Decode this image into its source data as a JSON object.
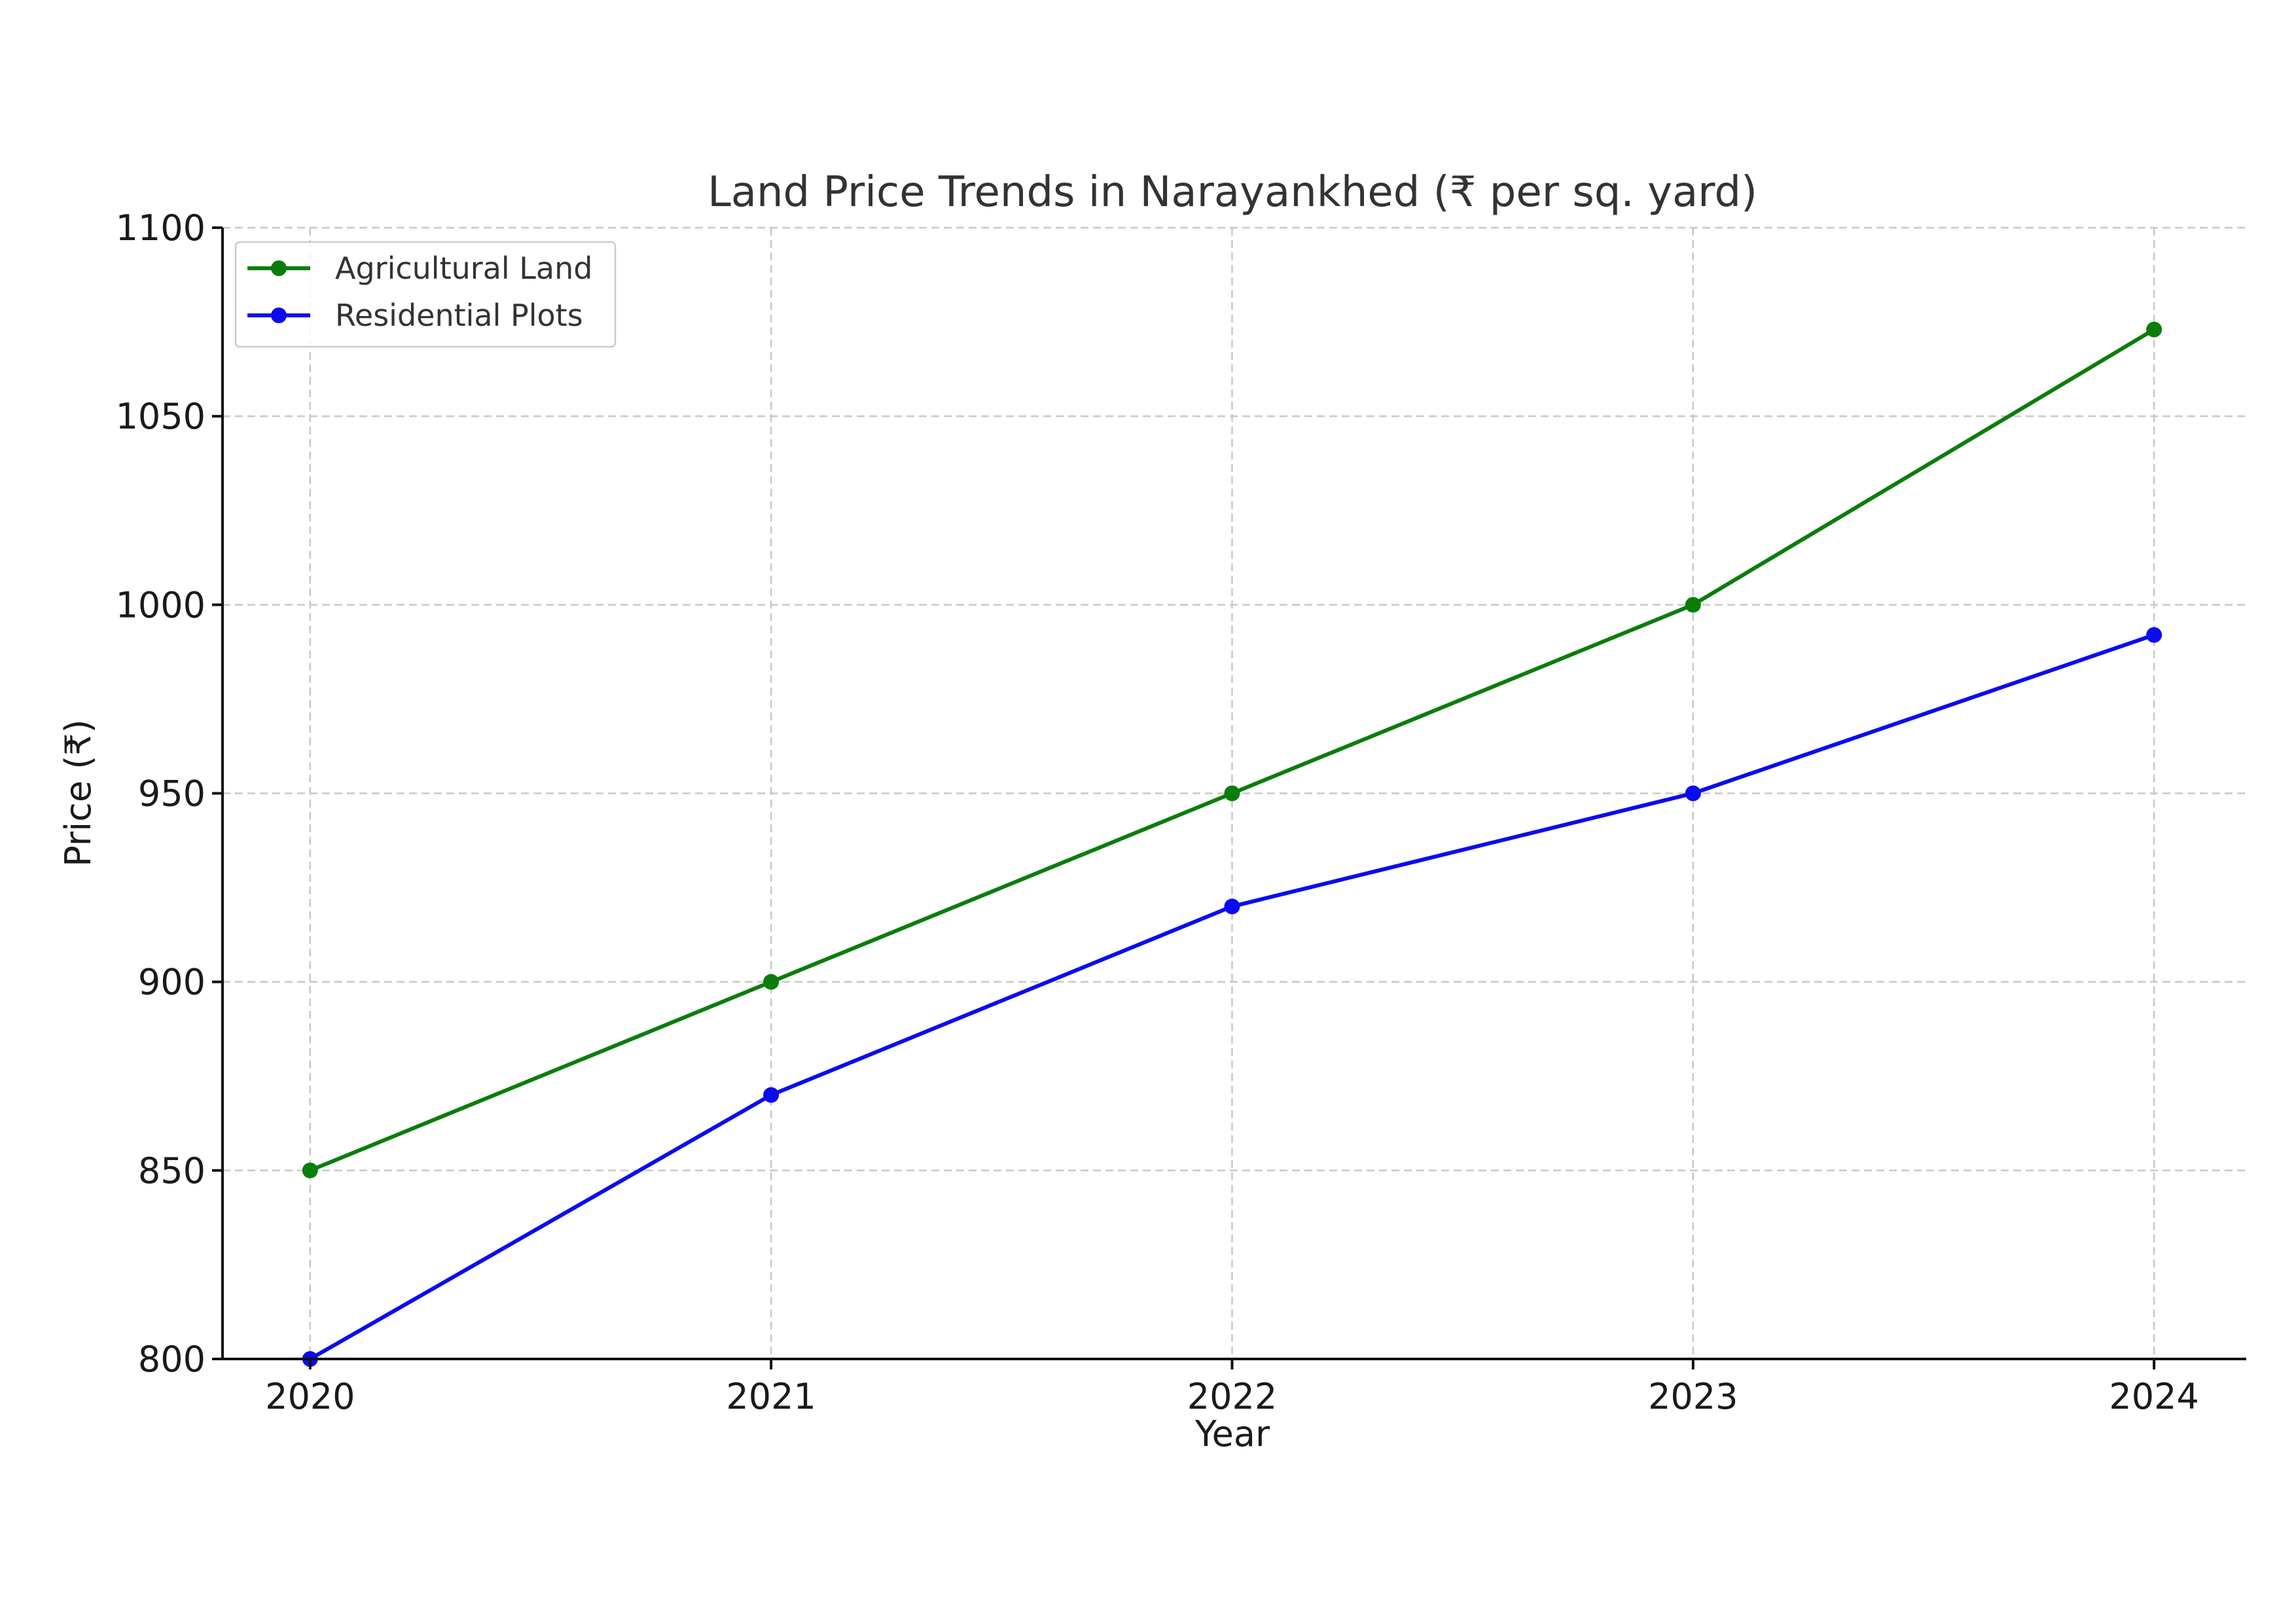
{
  "chart_data": {
    "type": "line",
    "title": "Land Price Trends in Narayankhed (₹ per sq. yard)",
    "xlabel": "Year",
    "ylabel": "Price (₹)",
    "x": [
      2020,
      2021,
      2022,
      2023,
      2024
    ],
    "x_tick_labels": [
      "2020",
      "2021",
      "2022",
      "2023",
      "2024"
    ],
    "ylim": [
      800,
      1100
    ],
    "y_ticks": [
      800,
      850,
      900,
      950,
      1000,
      1050,
      1100
    ],
    "y_tick_labels": [
      "800",
      "850",
      "900",
      "950",
      "1000",
      "1050",
      "1100"
    ],
    "grid": true,
    "legend_position": "top-left",
    "series": [
      {
        "name": "Agricultural Land",
        "color": "#0b7d0b",
        "marker": "circle",
        "values": [
          850,
          900,
          950,
          1000,
          1073
        ]
      },
      {
        "name": "Residential Plots",
        "color": "#0b0bef",
        "marker": "circle",
        "values": [
          800,
          870,
          920,
          950,
          992
        ]
      }
    ]
  }
}
